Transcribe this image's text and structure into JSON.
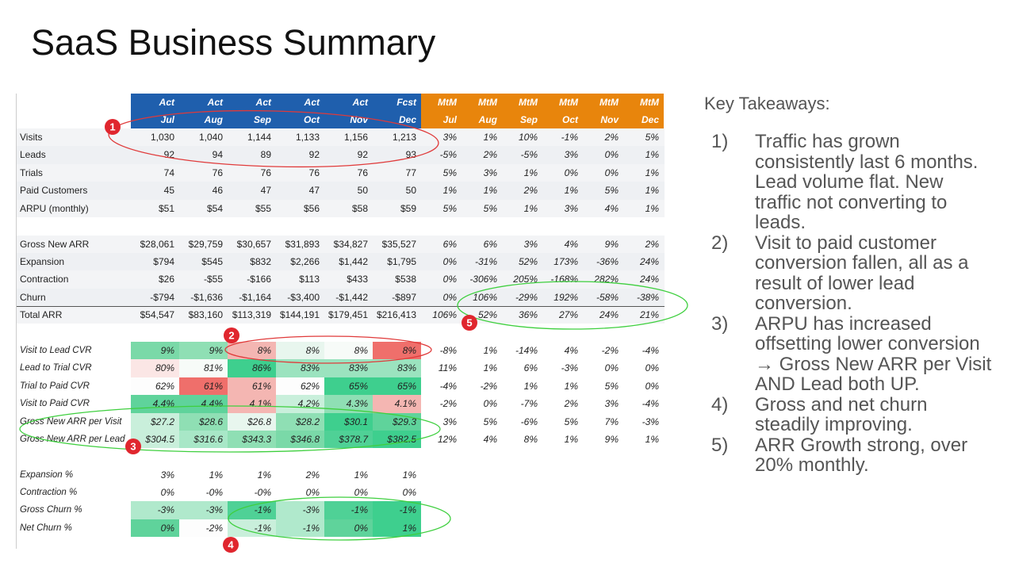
{
  "title": "SaaS Business Summary",
  "table": {
    "header_top": [
      "Act",
      "Act",
      "Act",
      "Act",
      "Act",
      "Fcst",
      "MtM",
      "MtM",
      "MtM",
      "MtM",
      "MtM",
      "MtM"
    ],
    "header_bottom": [
      "Jul",
      "Aug",
      "Sep",
      "Oct",
      "Nov",
      "Dec",
      "Jul",
      "Aug",
      "Sep",
      "Oct",
      "Nov",
      "Dec"
    ],
    "sections": [
      [
        {
          "label": "Visits",
          "values": [
            "1,030",
            "1,040",
            "1,144",
            "1,133",
            "1,156",
            "1,213"
          ],
          "mtm": [
            "3%",
            "1%",
            "10%",
            "-1%",
            "2%",
            "5%"
          ]
        },
        {
          "label": "Leads",
          "values": [
            "92",
            "94",
            "89",
            "92",
            "92",
            "93"
          ],
          "mtm": [
            "-5%",
            "2%",
            "-5%",
            "3%",
            "0%",
            "1%"
          ]
        },
        {
          "label": "Trials",
          "values": [
            "74",
            "76",
            "76",
            "76",
            "76",
            "77"
          ],
          "mtm": [
            "5%",
            "3%",
            "1%",
            "0%",
            "0%",
            "1%"
          ]
        },
        {
          "label": "Paid Customers",
          "values": [
            "45",
            "46",
            "47",
            "47",
            "50",
            "50"
          ],
          "mtm": [
            "1%",
            "1%",
            "2%",
            "1%",
            "5%",
            "1%"
          ]
        },
        {
          "label": "ARPU (monthly)",
          "values": [
            "$51",
            "$54",
            "$55",
            "$56",
            "$58",
            "$59"
          ],
          "mtm": [
            "5%",
            "5%",
            "1%",
            "3%",
            "4%",
            "1%"
          ]
        }
      ],
      [
        {
          "label": "Gross New ARR",
          "values": [
            "$28,061",
            "$29,759",
            "$30,657",
            "$31,893",
            "$34,827",
            "$35,527"
          ],
          "mtm": [
            "6%",
            "6%",
            "3%",
            "4%",
            "9%",
            "2%"
          ]
        },
        {
          "label": "Expansion",
          "values": [
            "$794",
            "$545",
            "$832",
            "$2,266",
            "$1,442",
            "$1,795"
          ],
          "mtm": [
            "0%",
            "-31%",
            "52%",
            "173%",
            "-36%",
            "24%"
          ]
        },
        {
          "label": "Contraction",
          "values": [
            "$26",
            "-$55",
            "-$166",
            "$113",
            "$433",
            "$538"
          ],
          "mtm": [
            "0%",
            "-306%",
            "205%",
            "-168%",
            "282%",
            "24%"
          ]
        },
        {
          "label": "Churn",
          "values": [
            "-$794",
            "-$1,636",
            "-$1,164",
            "-$3,400",
            "-$1,442",
            "-$897"
          ],
          "mtm": [
            "0%",
            "106%",
            "-29%",
            "192%",
            "-58%",
            "-38%"
          ]
        },
        {
          "label": "Total ARR",
          "values": [
            "$54,547",
            "$83,160",
            "$113,319",
            "$144,191",
            "$179,451",
            "$216,413"
          ],
          "mtm": [
            "106%",
            "52%",
            "36%",
            "27%",
            "24%",
            "21%"
          ]
        }
      ],
      [
        {
          "label": "Visit to Lead CVR",
          "values": [
            "9%",
            "9%",
            "8%",
            "8%",
            "8%",
            "8%"
          ],
          "mtm": [
            "-8%",
            "1%",
            "-14%",
            "4%",
            "-2%",
            "-4%"
          ],
          "fills": [
            "#7ad9a8",
            "#8fdfb4",
            "#f4b6b2",
            "#e8f6ee",
            "#f7fbf8",
            "#ef6f6b"
          ]
        },
        {
          "label": "Lead to Trial CVR",
          "values": [
            "80%",
            "81%",
            "86%",
            "83%",
            "83%",
            "83%"
          ],
          "mtm": [
            "11%",
            "1%",
            "6%",
            "-3%",
            "0%",
            "0%"
          ],
          "fills": [
            "#fbe6e5",
            "#f7fbf8",
            "#3ecf8e",
            "#9be3bf",
            "#9be3bf",
            "#9be3bf"
          ]
        },
        {
          "label": "Trial to Paid CVR",
          "values": [
            "62%",
            "61%",
            "61%",
            "62%",
            "65%",
            "65%"
          ],
          "mtm": [
            "-4%",
            "-2%",
            "1%",
            "1%",
            "5%",
            "0%"
          ],
          "fills": [
            "#fdfdfd",
            "#ef6f6b",
            "#f4b6b2",
            "#fdfdfd",
            "#3ecf8e",
            "#3ecf8e"
          ]
        },
        {
          "label": "Visit to Paid CVR",
          "values": [
            "4.4%",
            "4.4%",
            "4.1%",
            "4.2%",
            "4.3%",
            "4.1%"
          ],
          "mtm": [
            "-2%",
            "0%",
            "-7%",
            "2%",
            "3%",
            "-4%"
          ],
          "fills": [
            "#5fd39b",
            "#5fd39b",
            "#f4b6b2",
            "#c9efdb",
            "#8fdfb4",
            "#f4b6b2"
          ]
        },
        {
          "label": "Gross New ARR per Visit",
          "values": [
            "$27.2",
            "$28.6",
            "$26.8",
            "$28.2",
            "$30.1",
            "$29.3"
          ],
          "mtm": [
            "3%",
            "5%",
            "-6%",
            "5%",
            "7%",
            "-3%"
          ],
          "fills": [
            "#c9efdb",
            "#8fdfb4",
            "#e8f6ee",
            "#8fdfb4",
            "#3ecf8e",
            "#5fd39b"
          ]
        },
        {
          "label": "Gross New ARR per Lead",
          "values": [
            "$304.5",
            "$316.6",
            "$343.3",
            "$346.8",
            "$378.7",
            "$382.5"
          ],
          "mtm": [
            "12%",
            "4%",
            "8%",
            "1%",
            "9%",
            "1%"
          ],
          "fills": [
            "#c9efdb",
            "#a8e7c7",
            "#8fdfb4",
            "#7ad9a8",
            "#4fd196",
            "#3ecf8e"
          ]
        }
      ],
      [
        {
          "label": "Expansion %",
          "values": [
            "3%",
            "1%",
            "1%",
            "2%",
            "1%",
            "1%"
          ]
        },
        {
          "label": "Contraction %",
          "values": [
            "0%",
            "-0%",
            "-0%",
            "0%",
            "0%",
            "0%"
          ]
        },
        {
          "label": "Gross Churn %",
          "values": [
            "-3%",
            "-3%",
            "-1%",
            "-3%",
            "-1%",
            "-1%"
          ],
          "fills": [
            "#b0e9cc",
            "#b0e9cc",
            "#4fd196",
            "#b0e9cc",
            "#4fd196",
            "#3ecf8e"
          ]
        },
        {
          "label": "Net Churn %",
          "values": [
            "0%",
            "-2%",
            "-1%",
            "-1%",
            "0%",
            "1%"
          ],
          "fills": [
            "#5fd39b",
            "#fdfdfd",
            "#c9efdb",
            "#b0e9cc",
            "#5fd39b",
            "#3ecf8e"
          ]
        }
      ]
    ]
  },
  "markers": [
    "1",
    "2",
    "3",
    "4",
    "5"
  ],
  "takeaways": {
    "heading": "Key Takeaways:",
    "items": [
      {
        "number": "1)",
        "text": "Traffic has grown consistently last 6 months. Lead volume flat. New traffic not converting to leads."
      },
      {
        "number": "2)",
        "text": "Visit to paid customer conversion fallen, all as a result of lower lead conversion."
      },
      {
        "number": "3)",
        "text": "ARPU has increased offsetting lower conversion → Gross New ARR per Visit AND Lead both UP."
      },
      {
        "number": "4)",
        "text": "Gross and net churn steadily improving."
      },
      {
        "number": "5)",
        "text": "ARR Growth strong, over 20% monthly."
      }
    ]
  }
}
